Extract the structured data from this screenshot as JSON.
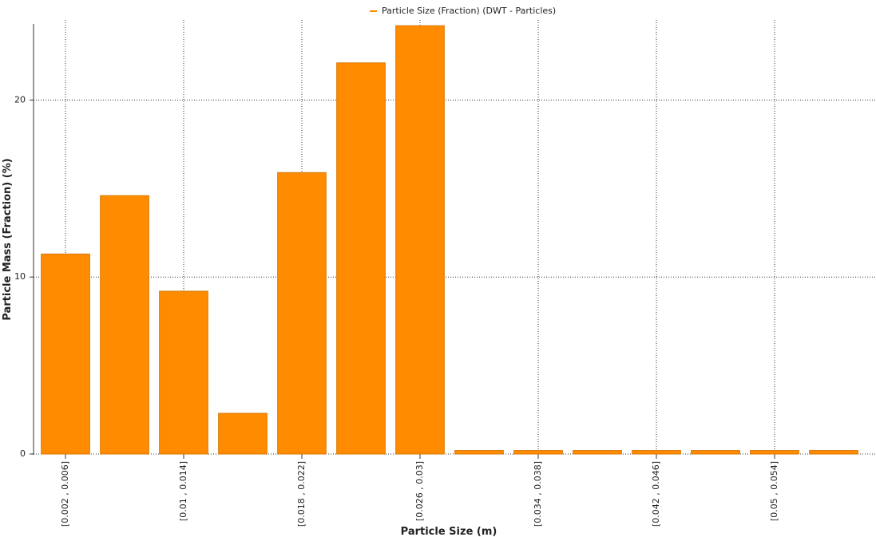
{
  "chart_data": {
    "type": "bar",
    "legend": "Particle Size (Fraction) (DWT - Particles)",
    "x_label": "Particle Size (m)",
    "y_label": "Particle Mass (Fraction) (%)",
    "categories": [
      "[0.002 , 0.006]",
      null,
      "[0.01 , 0.014]",
      null,
      "[0.018 , 0.022]",
      null,
      "[0.026 , 0.03]",
      null,
      "[0.034 , 0.038]",
      null,
      "[0.042 , 0.046]",
      null,
      "[0.05 , 0.054]",
      null
    ],
    "values": [
      11.3,
      14.6,
      9.2,
      2.3,
      15.9,
      22.1,
      24.2,
      0.2,
      0.2,
      0.2,
      0.2,
      0.2,
      0.2,
      0.2
    ],
    "color": "#ff8c00",
    "ylim": [
      0,
      24.3
    ],
    "yticks": [
      0,
      10,
      20
    ],
    "grid": true
  }
}
